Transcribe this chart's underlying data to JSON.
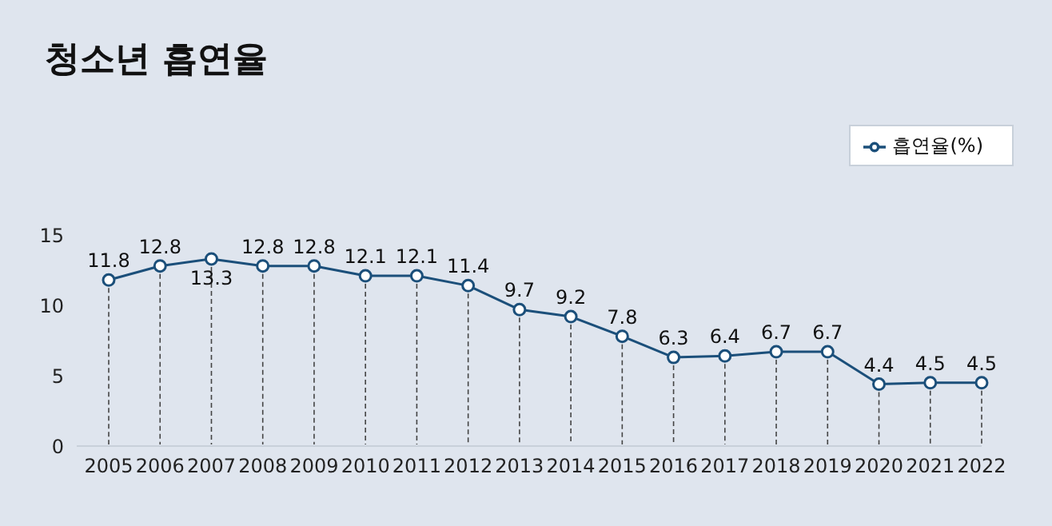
{
  "chart_data": {
    "type": "line",
    "title": "청소년 흡연율",
    "categories": [
      "2005",
      "2006",
      "2007",
      "2008",
      "2009",
      "2010",
      "2011",
      "2012",
      "2013",
      "2014",
      "2015",
      "2016",
      "2017",
      "2018",
      "2019",
      "2020",
      "2021",
      "2022"
    ],
    "series": [
      {
        "name": "흡연율(%)",
        "color": "#1b4f7a",
        "values": [
          11.8,
          12.8,
          13.3,
          12.8,
          12.8,
          12.1,
          12.1,
          11.4,
          9.7,
          9.2,
          7.8,
          6.3,
          6.4,
          6.7,
          6.7,
          4.4,
          4.5,
          4.5
        ]
      }
    ],
    "ylim": [
      0,
      15
    ],
    "yticks": [
      0,
      5,
      10,
      15
    ],
    "grid": "x",
    "legend": "top right",
    "marker": "circle",
    "data_labels": true
  }
}
